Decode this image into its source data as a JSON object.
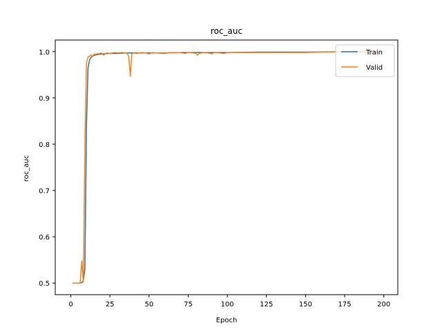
{
  "chart_data": {
    "type": "line",
    "title": "roc_auc",
    "xlabel": "Epoch",
    "ylabel": "roc_auc",
    "xlim": [
      -9.95,
      208.95
    ],
    "ylim": [
      0.475,
      1.025
    ],
    "grid": false,
    "legend_position": "top-right",
    "x_ticks": [
      0,
      25,
      50,
      75,
      100,
      125,
      150,
      175,
      200
    ],
    "y_ticks": [
      0.5,
      0.6,
      0.7,
      0.8,
      0.9,
      1.0
    ],
    "y_tick_labels": [
      "0.5",
      "0.6",
      "0.7",
      "0.8",
      "0.9",
      "1.0"
    ],
    "series": [
      {
        "name": "Train",
        "color": "#1f77b4",
        "points": [
          [
            1,
            0.5
          ],
          [
            2,
            0.5
          ],
          [
            3,
            0.5
          ],
          [
            4,
            0.5
          ],
          [
            5,
            0.5
          ],
          [
            6,
            0.5
          ],
          [
            7,
            0.501
          ],
          [
            8,
            0.505
          ],
          [
            9,
            0.53
          ],
          [
            10,
            0.84
          ],
          [
            11,
            0.965
          ],
          [
            12,
            0.982
          ],
          [
            13,
            0.988
          ],
          [
            14,
            0.99
          ],
          [
            15,
            0.992
          ],
          [
            16,
            0.993
          ],
          [
            18,
            0.994
          ],
          [
            20,
            0.995
          ],
          [
            25,
            0.996
          ],
          [
            30,
            0.996
          ],
          [
            35,
            0.997
          ],
          [
            40,
            0.997
          ],
          [
            50,
            0.997
          ],
          [
            60,
            0.997
          ],
          [
            70,
            0.998
          ],
          [
            80,
            0.998
          ],
          [
            90,
            0.998
          ],
          [
            100,
            0.998
          ],
          [
            120,
            0.999
          ],
          [
            150,
            0.999
          ],
          [
            170,
            0.9995
          ],
          [
            200,
            0.9995
          ]
        ]
      },
      {
        "name": "Valid",
        "color": "#ff7f0e",
        "points": [
          [
            1,
            0.5
          ],
          [
            2,
            0.5
          ],
          [
            3,
            0.5
          ],
          [
            4,
            0.5
          ],
          [
            5,
            0.5
          ],
          [
            6,
            0.5
          ],
          [
            7,
            0.548
          ],
          [
            8,
            0.502
          ],
          [
            9,
            0.8
          ],
          [
            10,
            0.975
          ],
          [
            11,
            0.988
          ],
          [
            12,
            0.99
          ],
          [
            13,
            0.993
          ],
          [
            14,
            0.99
          ],
          [
            15,
            0.995
          ],
          [
            16,
            0.994
          ],
          [
            17,
            0.996
          ],
          [
            18,
            0.995
          ],
          [
            19,
            0.997
          ],
          [
            20,
            0.996
          ],
          [
            21,
            0.992
          ],
          [
            22,
            0.996
          ],
          [
            23,
            0.997
          ],
          [
            25,
            0.996
          ],
          [
            28,
            0.998
          ],
          [
            30,
            0.997
          ],
          [
            33,
            0.998
          ],
          [
            35,
            0.997
          ],
          [
            36,
            0.996
          ],
          [
            37,
            0.99
          ],
          [
            38,
            0.947
          ],
          [
            39,
            0.995
          ],
          [
            40,
            0.997
          ],
          [
            42,
            0.996
          ],
          [
            45,
            0.998
          ],
          [
            48,
            0.997
          ],
          [
            50,
            0.995
          ],
          [
            52,
            0.998
          ],
          [
            55,
            0.997
          ],
          [
            60,
            0.996
          ],
          [
            63,
            0.998
          ],
          [
            65,
            0.997
          ],
          [
            70,
            0.998
          ],
          [
            73,
            0.996
          ],
          [
            75,
            0.998
          ],
          [
            78,
            0.997
          ],
          [
            80,
            0.996
          ],
          [
            81,
            0.992
          ],
          [
            82,
            0.996
          ],
          [
            85,
            0.998
          ],
          [
            88,
            0.997
          ],
          [
            90,
            0.995
          ],
          [
            92,
            0.998
          ],
          [
            95,
            0.997
          ],
          [
            98,
            0.996
          ],
          [
            100,
            0.998
          ],
          [
            105,
            0.998
          ],
          [
            110,
            0.998
          ],
          [
            120,
            0.998
          ],
          [
            130,
            0.998
          ],
          [
            140,
            0.998
          ],
          [
            150,
            0.998
          ],
          [
            160,
            0.999
          ],
          [
            170,
            0.999
          ],
          [
            185,
            0.999
          ],
          [
            200,
            0.999
          ]
        ]
      }
    ]
  }
}
